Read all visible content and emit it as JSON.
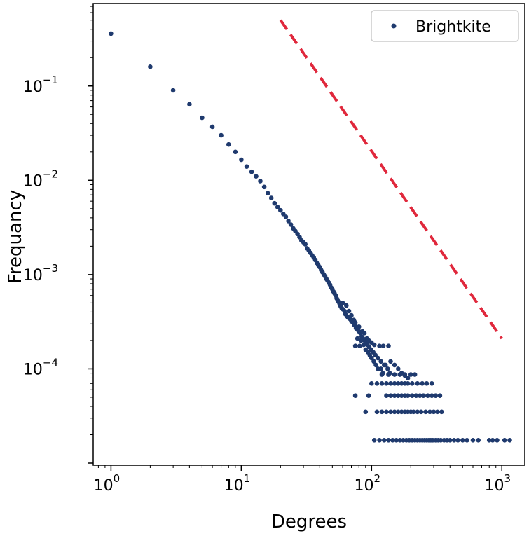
{
  "chart_data": {
    "type": "scatter",
    "xlabel": "Degrees",
    "ylabel": "Frequancy",
    "xscale": "log",
    "yscale": "log",
    "xlim": [
      0.73,
      1500
    ],
    "ylim": [
      9.5e-06,
      0.75
    ],
    "grid": false,
    "legend": {
      "placement": "top-right",
      "entries": [
        "Brightkite"
      ]
    },
    "x_ticks": [
      {
        "value": 1,
        "base": "10",
        "exp": "0"
      },
      {
        "value": 10,
        "base": "10",
        "exp": "1"
      },
      {
        "value": 100,
        "base": "10",
        "exp": "2"
      },
      {
        "value": 1000,
        "base": "10",
        "exp": "3"
      }
    ],
    "y_ticks": [
      {
        "value": 0.1,
        "base": "10",
        "exp": "−1"
      },
      {
        "value": 0.01,
        "base": "10",
        "exp": "−2"
      },
      {
        "value": 0.001,
        "base": "10",
        "exp": "−3"
      },
      {
        "value": 0.0001,
        "base": "10",
        "exp": "−4"
      }
    ],
    "series": [
      {
        "name": "Brightkite",
        "color": "#1f3a6e",
        "points": [
          [
            1,
            0.36
          ],
          [
            2,
            0.16
          ],
          [
            3,
            0.09
          ],
          [
            4,
            0.064
          ],
          [
            5,
            0.046
          ],
          [
            6,
            0.037
          ],
          [
            7,
            0.03
          ],
          [
            8,
            0.024
          ],
          [
            9,
            0.02
          ],
          [
            10,
            0.0165
          ],
          [
            11,
            0.014
          ],
          [
            12,
            0.0123
          ],
          [
            13,
            0.011
          ],
          [
            14,
            0.0098
          ],
          [
            15,
            0.0085
          ],
          [
            16,
            0.0073
          ],
          [
            17,
            0.0065
          ],
          [
            18,
            0.0057
          ],
          [
            19,
            0.0052
          ],
          [
            20,
            0.0048
          ],
          [
            21,
            0.0044
          ],
          [
            22,
            0.0041
          ],
          [
            23,
            0.0037
          ],
          [
            24,
            0.0034
          ],
          [
            25,
            0.0031
          ],
          [
            26,
            0.0029
          ],
          [
            27,
            0.0027
          ],
          [
            28,
            0.0025
          ],
          [
            29,
            0.0023
          ],
          [
            30,
            0.0022
          ],
          [
            31,
            0.0021
          ],
          [
            32,
            0.0019
          ],
          [
            33,
            0.0018
          ],
          [
            34,
            0.0017
          ],
          [
            35,
            0.0016
          ],
          [
            36,
            0.00152
          ],
          [
            37,
            0.00143
          ],
          [
            38,
            0.00133
          ],
          [
            39,
            0.00126
          ],
          [
            40,
            0.0012
          ],
          [
            41,
            0.00112
          ],
          [
            42,
            0.00106
          ],
          [
            43,
            0.001
          ],
          [
            44,
            0.00096
          ],
          [
            45,
            0.0009
          ],
          [
            46,
            0.00086
          ],
          [
            47,
            0.00082
          ],
          [
            48,
            0.00078
          ],
          [
            49,
            0.00073
          ],
          [
            50,
            0.0007
          ],
          [
            51,
            0.00066
          ],
          [
            52,
            0.00063
          ],
          [
            53,
            0.0006
          ],
          [
            54,
            0.00056
          ],
          [
            55,
            0.00053
          ],
          [
            56,
            0.00051
          ],
          [
            57,
            0.00048
          ],
          [
            58,
            0.00046
          ],
          [
            59,
            0.00044
          ],
          [
            60,
            0.00043
          ],
          [
            62,
            0.00041
          ],
          [
            63,
            0.00038
          ],
          [
            65,
            0.00036
          ],
          [
            66,
            0.00035
          ],
          [
            68,
            0.00034
          ],
          [
            70,
            0.00032
          ],
          [
            72,
            0.00031
          ],
          [
            74,
            0.00029
          ],
          [
            76,
            0.00027
          ],
          [
            78,
            0.00026
          ],
          [
            80,
            0.00025
          ],
          [
            82,
            0.00024
          ],
          [
            84,
            0.00022
          ],
          [
            86,
            0.00021
          ],
          [
            88,
            0.0002
          ],
          [
            90,
            0.00019
          ],
          [
            93,
            0.00018
          ],
          [
            96,
            0.00017
          ],
          [
            99,
            0.00016
          ],
          [
            103,
            0.00015
          ],
          [
            107,
            0.00014
          ],
          [
            112,
            0.00013
          ],
          [
            118,
            0.00012
          ],
          [
            125,
            0.00011
          ],
          [
            60,
            0.0005
          ],
          [
            64,
            0.00047
          ],
          [
            67,
            0.00041
          ],
          [
            70,
            0.00037
          ],
          [
            73,
            0.00033
          ],
          [
            75,
            0.00031
          ],
          [
            80,
            0.00028
          ],
          [
            85,
            0.00025
          ],
          [
            88,
            0.00024
          ],
          [
            92,
            0.00021
          ],
          [
            95,
            0.0002
          ],
          [
            100,
            0.00019
          ],
          [
            105,
            0.00018
          ],
          [
            78,
            0.00021
          ],
          [
            83,
            0.0002
          ],
          [
            87,
            0.00018
          ],
          [
            90,
            0.00016
          ],
          [
            94,
            0.00015
          ],
          [
            97,
            0.00014
          ],
          [
            100,
            0.00013
          ],
          [
            104,
            0.00012
          ],
          [
            108,
            0.00011
          ],
          [
            112,
            0.0001
          ],
          [
            118,
            0.0001
          ],
          [
            122,
            9e-05
          ],
          [
            128,
            0.00011
          ],
          [
            133,
            0.0001
          ],
          [
            138,
            9e-05
          ],
          [
            140,
            0.00012
          ],
          [
            150,
            0.00011
          ],
          [
            160,
            0.0001
          ],
          [
            170,
            9e-05
          ],
          [
            180,
            8.5e-05
          ],
          [
            190,
            8e-05
          ],
          [
            75,
            0.000175
          ],
          [
            81,
            0.000175
          ],
          [
            115,
            0.000175
          ],
          [
            123,
            0.000175
          ],
          [
            135,
            0.000175
          ],
          [
            75,
            5.2e-05
          ],
          [
            95,
            5.2e-05
          ],
          [
            90,
            3.5e-05
          ],
          [
            110,
            3.5e-05
          ],
          [
            120,
            3.5e-05
          ],
          [
            130,
            3.5e-05
          ],
          [
            140,
            3.5e-05
          ],
          [
            150,
            3.5e-05
          ],
          [
            160,
            3.5e-05
          ],
          [
            170,
            3.5e-05
          ],
          [
            180,
            3.5e-05
          ],
          [
            190,
            3.5e-05
          ],
          [
            200,
            3.5e-05
          ],
          [
            210,
            3.5e-05
          ],
          [
            225,
            3.5e-05
          ],
          [
            240,
            3.5e-05
          ],
          [
            260,
            3.5e-05
          ],
          [
            280,
            3.5e-05
          ],
          [
            300,
            3.5e-05
          ],
          [
            320,
            3.5e-05
          ],
          [
            345,
            3.5e-05
          ],
          [
            130,
            5.2e-05
          ],
          [
            140,
            5.2e-05
          ],
          [
            150,
            5.2e-05
          ],
          [
            160,
            5.2e-05
          ],
          [
            170,
            5.2e-05
          ],
          [
            180,
            5.2e-05
          ],
          [
            190,
            5.2e-05
          ],
          [
            205,
            5.2e-05
          ],
          [
            220,
            5.2e-05
          ],
          [
            235,
            5.2e-05
          ],
          [
            250,
            5.2e-05
          ],
          [
            270,
            5.2e-05
          ],
          [
            290,
            5.2e-05
          ],
          [
            310,
            5.2e-05
          ],
          [
            335,
            5.2e-05
          ],
          [
            100,
            7e-05
          ],
          [
            110,
            7e-05
          ],
          [
            120,
            7e-05
          ],
          [
            130,
            7e-05
          ],
          [
            140,
            7e-05
          ],
          [
            150,
            7e-05
          ],
          [
            160,
            7e-05
          ],
          [
            170,
            7e-05
          ],
          [
            180,
            7e-05
          ],
          [
            190,
            7e-05
          ],
          [
            205,
            7e-05
          ],
          [
            225,
            7e-05
          ],
          [
            245,
            7e-05
          ],
          [
            265,
            7e-05
          ],
          [
            290,
            7e-05
          ],
          [
            120,
            8.7e-05
          ],
          [
            135,
            8.7e-05
          ],
          [
            150,
            8.7e-05
          ],
          [
            165,
            8.7e-05
          ],
          [
            180,
            8.7e-05
          ],
          [
            200,
            8.7e-05
          ],
          [
            215,
            8.7e-05
          ],
          [
            105,
            1.75e-05
          ],
          [
            115,
            1.75e-05
          ],
          [
            125,
            1.75e-05
          ],
          [
            135,
            1.75e-05
          ],
          [
            145,
            1.75e-05
          ],
          [
            155,
            1.75e-05
          ],
          [
            165,
            1.75e-05
          ],
          [
            175,
            1.75e-05
          ],
          [
            185,
            1.75e-05
          ],
          [
            195,
            1.75e-05
          ],
          [
            205,
            1.75e-05
          ],
          [
            215,
            1.75e-05
          ],
          [
            225,
            1.75e-05
          ],
          [
            235,
            1.75e-05
          ],
          [
            245,
            1.75e-05
          ],
          [
            255,
            1.75e-05
          ],
          [
            265,
            1.75e-05
          ],
          [
            275,
            1.75e-05
          ],
          [
            285,
            1.75e-05
          ],
          [
            295,
            1.75e-05
          ],
          [
            310,
            1.75e-05
          ],
          [
            325,
            1.75e-05
          ],
          [
            340,
            1.75e-05
          ],
          [
            360,
            1.75e-05
          ],
          [
            380,
            1.75e-05
          ],
          [
            400,
            1.75e-05
          ],
          [
            430,
            1.75e-05
          ],
          [
            460,
            1.75e-05
          ],
          [
            500,
            1.75e-05
          ],
          [
            540,
            1.75e-05
          ],
          [
            600,
            1.75e-05
          ],
          [
            660,
            1.75e-05
          ],
          [
            800,
            1.75e-05
          ],
          [
            850,
            1.75e-05
          ],
          [
            920,
            1.75e-05
          ],
          [
            1050,
            1.75e-05
          ],
          [
            1150,
            1.75e-05
          ]
        ]
      }
    ],
    "reference_line": {
      "color": "#e0283c",
      "style": "dashed",
      "points": [
        [
          20,
          0.5
        ],
        [
          1000,
          0.00021
        ]
      ]
    }
  }
}
